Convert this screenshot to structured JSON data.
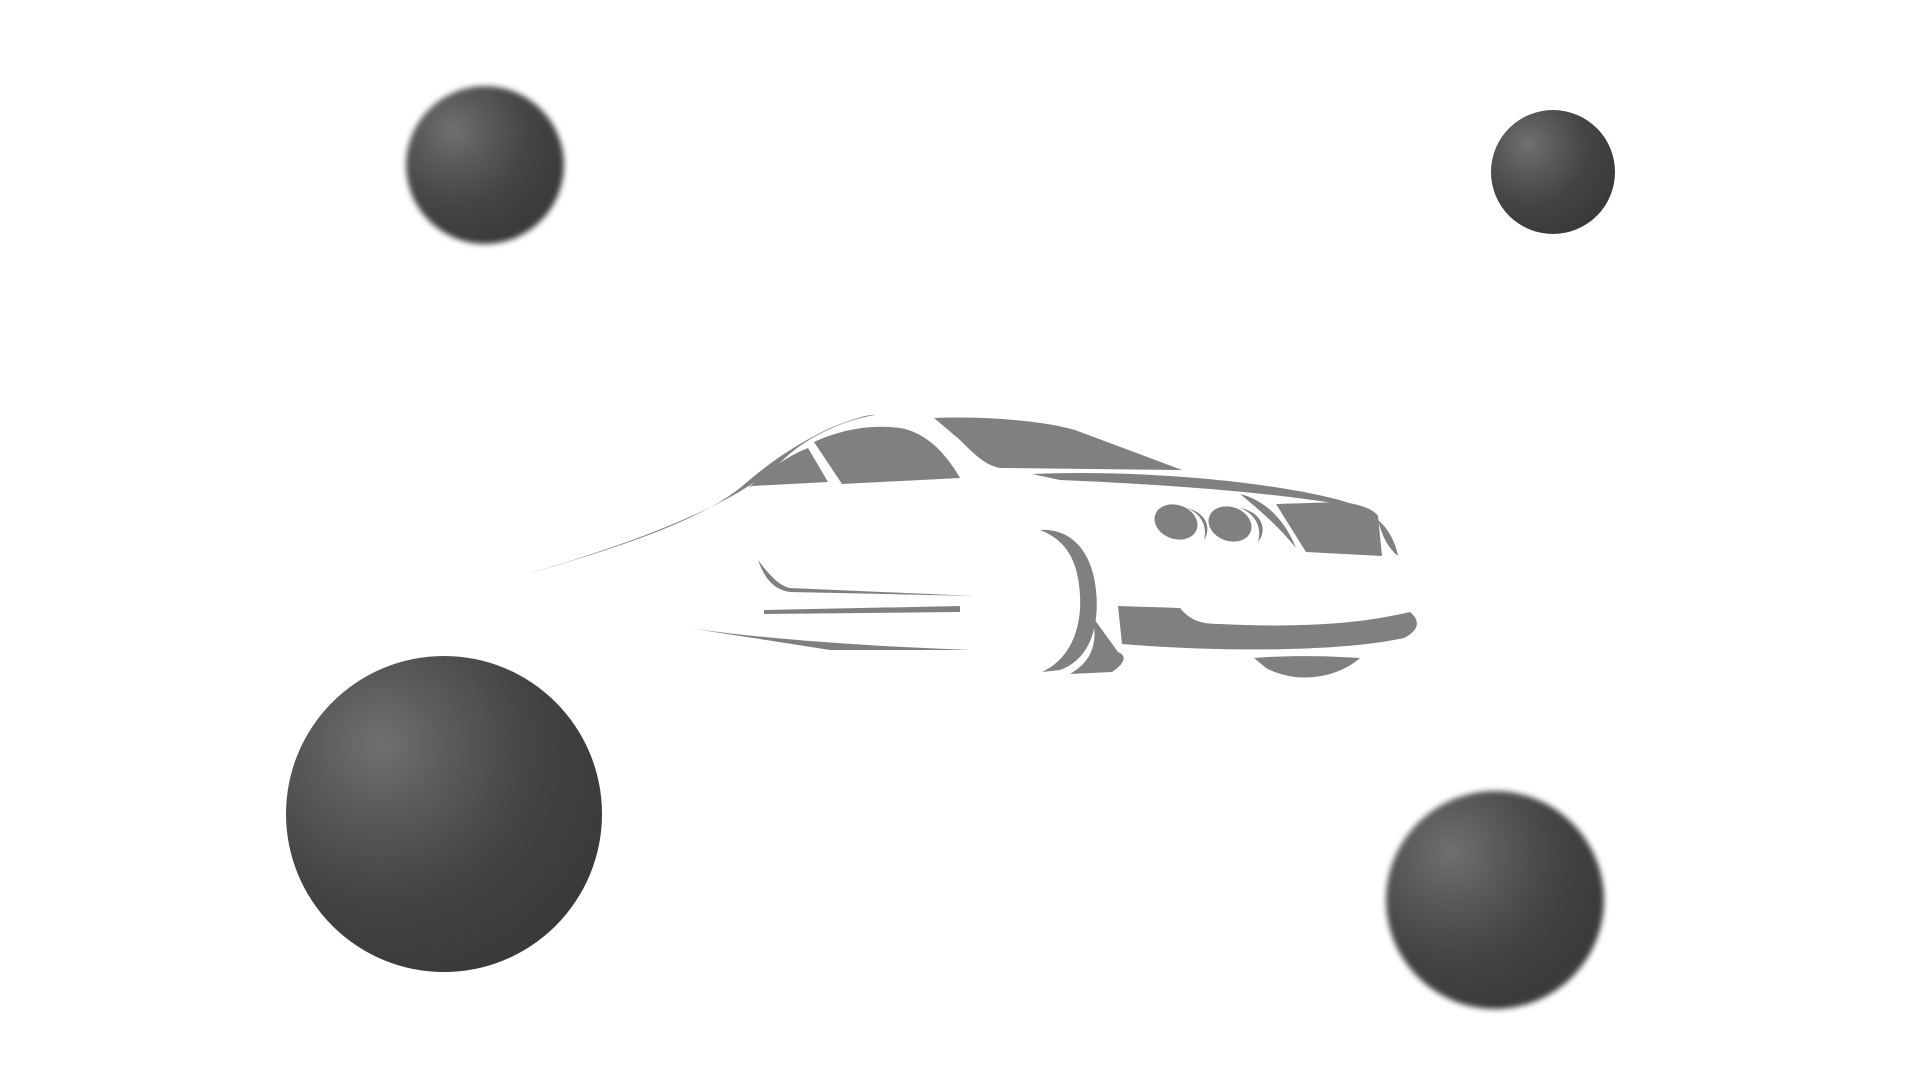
{
  "scene": {
    "background_color": "#ffffff",
    "sphere_color": "#3b3b3b",
    "sphere_highlight_color": "#707070",
    "logo_color": "#808080",
    "logo_icon": "sports-car-icon",
    "spheres": [
      {
        "id": "top-left",
        "blurred": true
      },
      {
        "id": "top-right",
        "blurred": false
      },
      {
        "id": "bottom-left",
        "blurred": false
      },
      {
        "id": "bottom-right",
        "blurred": true
      }
    ]
  }
}
